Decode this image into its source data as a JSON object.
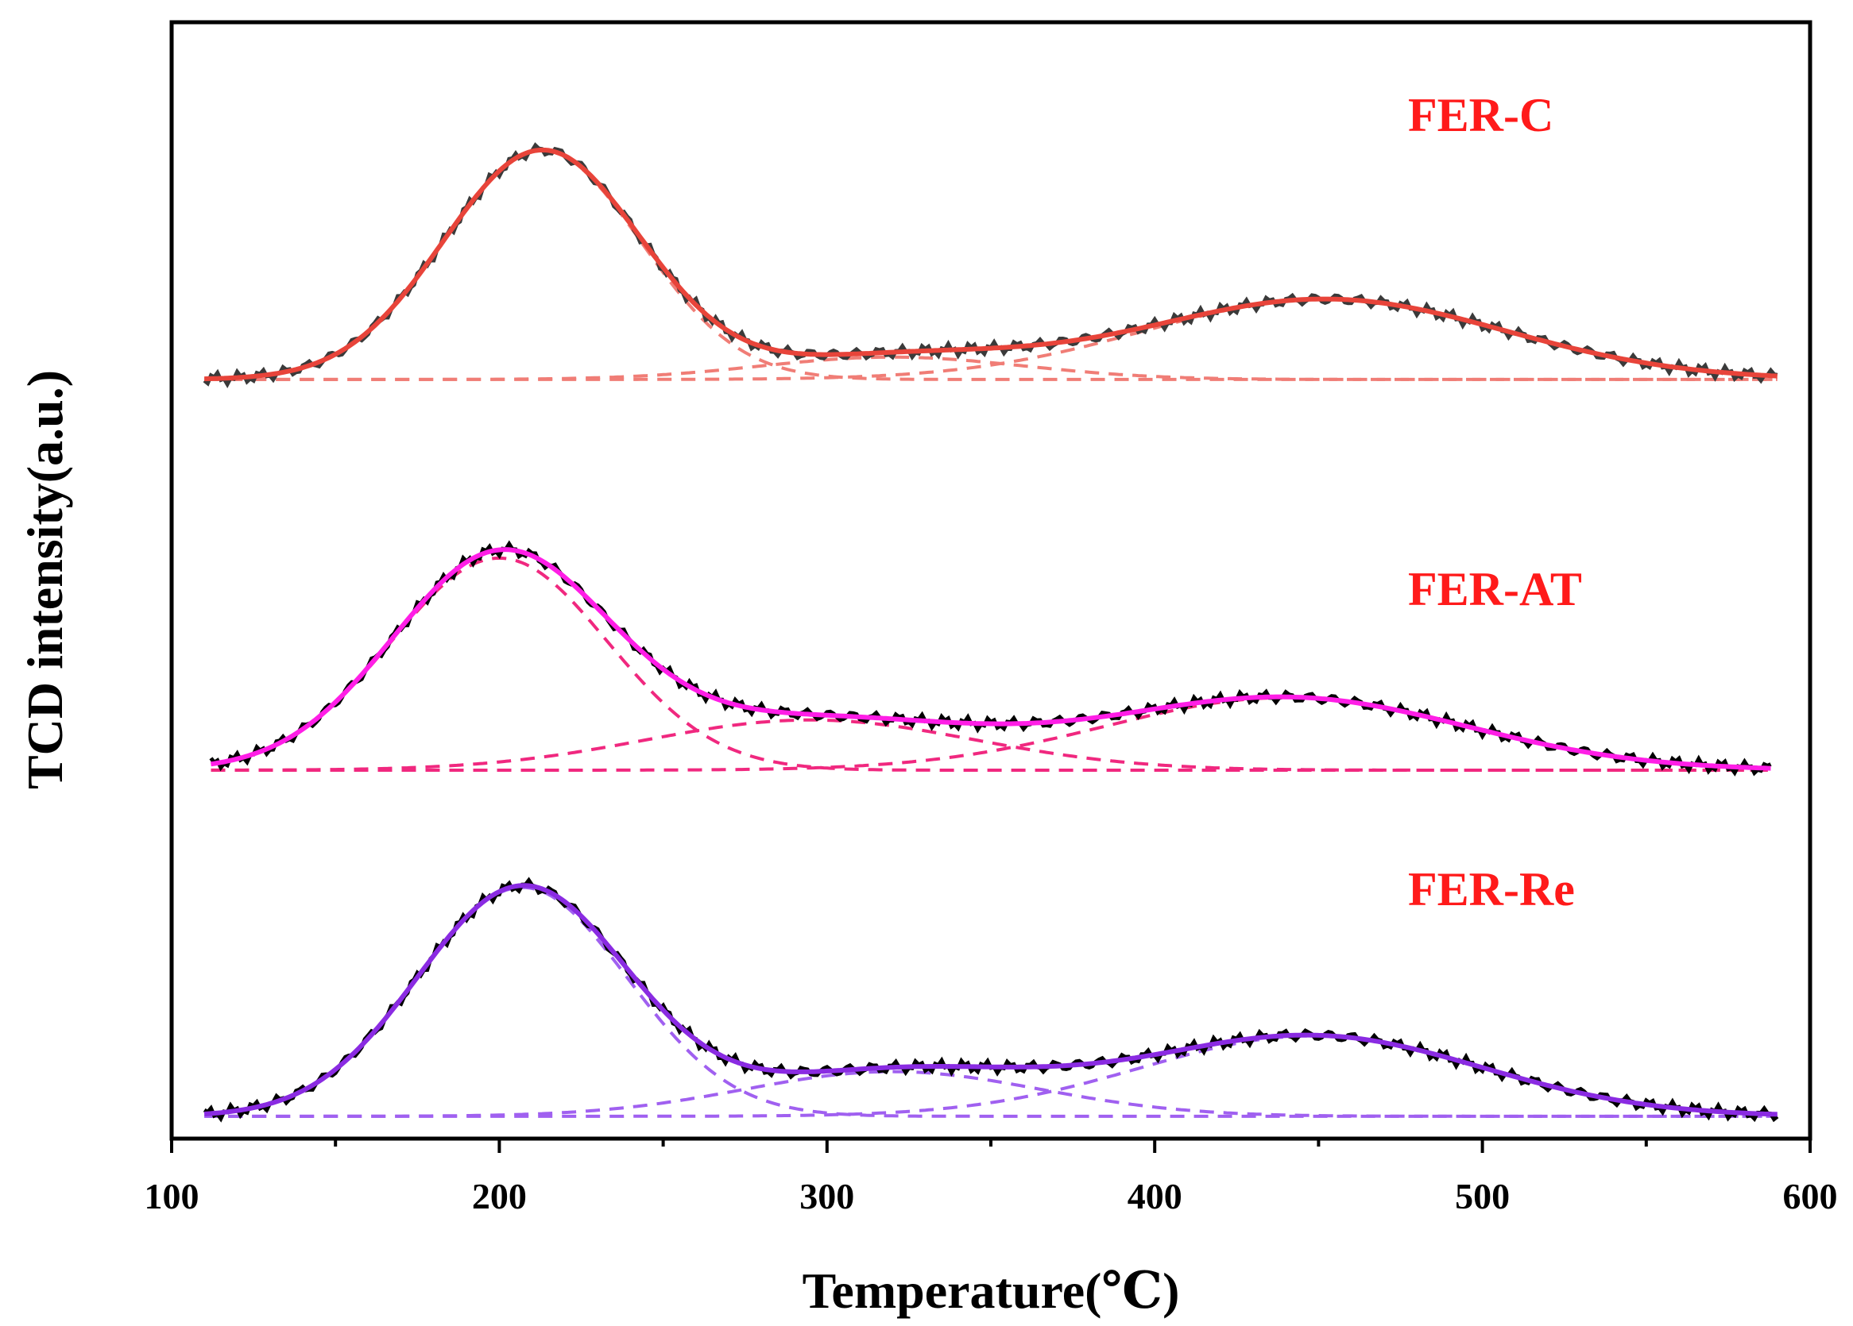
{
  "chart_data": {
    "type": "line",
    "xlabel": "Temperature(℃)",
    "ylabel": "TCD intensity(a.u.)",
    "xlim": [
      100,
      600
    ],
    "xticks": [
      100,
      200,
      300,
      400,
      500,
      600
    ],
    "ylim": [
      0,
      10
    ],
    "yticks_visible": false,
    "grid": false,
    "samples": [
      {
        "name": "FER-C",
        "label_color": "#ff1a1a",
        "offset": 6.8,
        "x_range": [
          110,
          590
        ],
        "fit_color": "#e8443a",
        "component_color": "#f07d76",
        "peaks": [
          {
            "center": 213,
            "height": 2.05,
            "sigma": 30
          },
          {
            "center": 320,
            "height": 0.2,
            "sigma": 40
          },
          {
            "center": 452,
            "height": 0.72,
            "sigma": 55
          }
        ],
        "exp_color": "#3a3a3a"
      },
      {
        "name": "FER-AT",
        "label_color": "#ff1a1a",
        "offset": 3.3,
        "x_range": [
          112,
          588
        ],
        "fit_color": "#ff1ee6",
        "component_color": "#f0287f",
        "peaks": [
          {
            "center": 200,
            "height": 1.9,
            "sigma": 33
          },
          {
            "center": 295,
            "height": 0.45,
            "sigma": 50
          },
          {
            "center": 440,
            "height": 0.65,
            "sigma": 55
          }
        ],
        "exp_color": "#000000"
      },
      {
        "name": "FER-Re",
        "label_color": "#ff1a1a",
        "offset": 0.2,
        "x_range": [
          110,
          590
        ],
        "fit_color": "#8a2be2",
        "component_color": "#a060f0",
        "peaks": [
          {
            "center": 207,
            "height": 2.05,
            "sigma": 32
          },
          {
            "center": 320,
            "height": 0.4,
            "sigma": 45
          },
          {
            "center": 448,
            "height": 0.72,
            "sigma": 52
          }
        ],
        "exp_color": "#000000"
      }
    ]
  }
}
